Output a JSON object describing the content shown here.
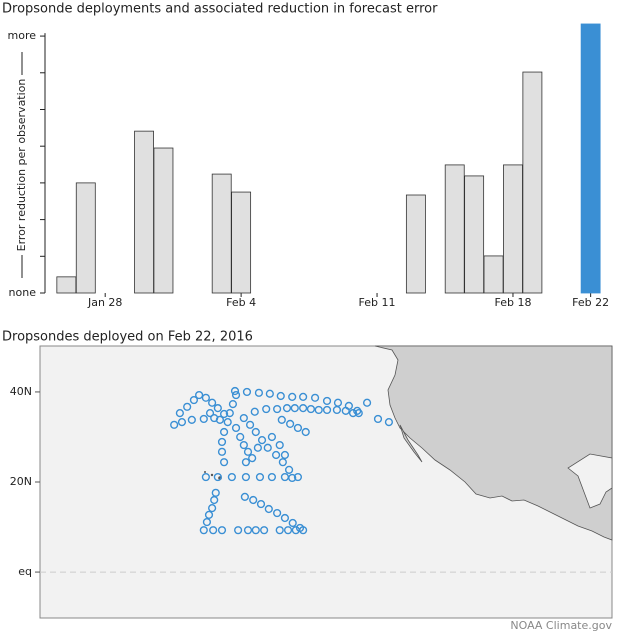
{
  "chart_data": [
    {
      "type": "bar",
      "title": "Dropsonde deployments and associated reduction in forecast error",
      "y_label": "Error reduction per observation",
      "x": [
        26,
        27,
        30,
        31,
        34,
        35,
        44,
        46,
        47,
        48,
        49,
        50,
        53
      ],
      "values": [
        0.44,
        3.0,
        4.41,
        3.95,
        3.24,
        2.75,
        2.67,
        3.49,
        3.19,
        1.01,
        3.49,
        6.02,
        7.33
      ],
      "colors": [
        "#e0e0e0",
        "#e0e0e0",
        "#e0e0e0",
        "#e0e0e0",
        "#e0e0e0",
        "#e0e0e0",
        "#e0e0e0",
        "#e0e0e0",
        "#e0e0e0",
        "#e0e0e0",
        "#e0e0e0",
        "#e0e0e0",
        "#3a8fd4"
      ],
      "xlim": [
        24.9,
        54.1
      ],
      "ylim": [
        0,
        7.4
      ],
      "xticks": [
        {
          "value": 28,
          "label": "Jan 28"
        },
        {
          "value": 35,
          "label": "Feb 4"
        },
        {
          "value": 42,
          "label": "Feb 11"
        },
        {
          "value": 49,
          "label": "Feb 18"
        },
        {
          "value": 53,
          "label": "Feb 22"
        }
      ],
      "yticks": [
        {
          "value": 0,
          "label": "none"
        },
        {
          "value": 7,
          "label": "more"
        }
      ],
      "ytick_marks": [
        1,
        2,
        3,
        4,
        5,
        6
      ]
    },
    {
      "type": "scatter",
      "title": "Dropsondes deployed on Feb 22, 2016",
      "color": "#3a8fd4",
      "x": [
        -165.5,
        -164.4,
        -163,
        -161.7,
        -160.7,
        -159.4,
        -158.2,
        -157.1,
        -155.9,
        -164,
        -162.1,
        -159.8,
        -157.8,
        -153.8,
        -151.5,
        -149.2,
        -147.1,
        -145,
        -142.8,
        -140.7,
        -138.4,
        -136.1,
        -134,
        -131.9,
        -130.3,
        -128.4,
        -126.3,
        -124.2,
        -147.8,
        -145.7,
        -143.8,
        -142.3,
        -140.7,
        -139.2,
        -137.7,
        -136.1,
        -134.2,
        -132.5,
        -131.1,
        -130,
        -153.6,
        -154.2,
        -154.8,
        -155.2,
        -155.9,
        -156.3,
        -156.3,
        -155.9,
        -153.6,
        -152.8,
        -152.1,
        -151.3,
        -150.5,
        -152.1,
        -150.9,
        -149.8,
        -148.6,
        -147.5,
        -145.9,
        -144.6,
        -143.4,
        -142.8,
        -144.8,
        -143.2,
        -141.7,
        -140.2,
        -159.4,
        -157.1,
        -154.4,
        -151.7,
        -149,
        -146.7,
        -144.2,
        -141.7,
        -157.5,
        -157.8,
        -158.2,
        -158.8,
        -159.2,
        -159.8,
        -158,
        -156.3,
        -153.2,
        -151.3,
        -149.8,
        -148.2,
        -145.2,
        -143.6,
        -142.1,
        -140.7,
        -151.9,
        -150.3,
        -148.8,
        -147.3,
        -145.7,
        -144.2,
        -142.7,
        -141.3,
        -158.6,
        -156.7,
        -150,
        -146.7,
        -145.2,
        -149.4,
        -151.7,
        -144.2
      ],
      "y": [
        32.7,
        35.3,
        36.7,
        38.2,
        39.3,
        38.7,
        37.6,
        36.4,
        35.1,
        33.3,
        33.8,
        34,
        34.2,
        40.2,
        40,
        39.8,
        39.6,
        39.1,
        38.9,
        38.9,
        38.7,
        38,
        37.6,
        36.9,
        35.8,
        37.6,
        34,
        33.3,
        36.2,
        36.2,
        36.4,
        36.4,
        36.4,
        36.2,
        36,
        36,
        36,
        35.8,
        35.3,
        35.3,
        39.3,
        37.3,
        35.3,
        33.3,
        31.1,
        28.9,
        26.7,
        24.4,
        32,
        30,
        28.2,
        26.7,
        25.3,
        34.2,
        32.7,
        31.1,
        29.3,
        27.6,
        26,
        24.4,
        22.7,
        20.9,
        33.8,
        32.9,
        32,
        31.1,
        21.1,
        21.1,
        21.1,
        21.1,
        21.1,
        21.1,
        21.1,
        21.1,
        17.6,
        16,
        14.2,
        12.7,
        11.1,
        9.3,
        9.3,
        9.3,
        9.3,
        9.3,
        9.3,
        9.3,
        9.3,
        9.3,
        9.3,
        9.3,
        16.7,
        16,
        15.1,
        14,
        13.1,
        12,
        10.9,
        9.8,
        35.3,
        33.8,
        35.6,
        30,
        28.2,
        27.6,
        24.4,
        26
      ],
      "xlim": [
        -191.3,
        -81.3
      ],
      "ylim": [
        -10.2,
        50.2
      ],
      "yticks": [
        {
          "value": 40,
          "label": "40N"
        },
        {
          "value": 20,
          "label": "20N"
        },
        {
          "value": 0,
          "label": "eq"
        }
      ],
      "credit": "NOAA Climate.gov"
    }
  ]
}
